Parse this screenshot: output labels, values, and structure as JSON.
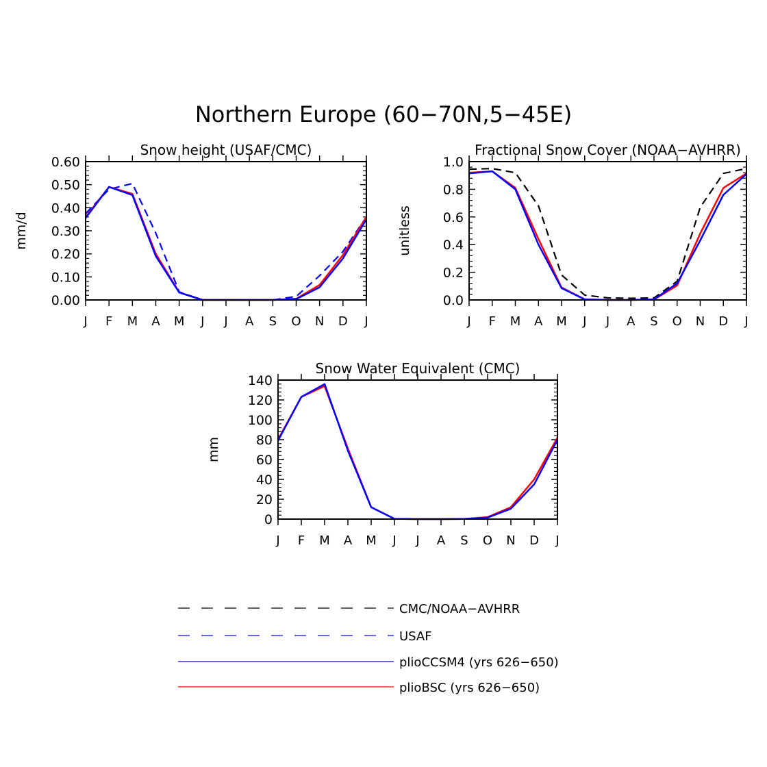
{
  "figure": {
    "title": "Northern Europe (60−70N,5−45E)"
  },
  "colors": {
    "obs_cmc": "#000000",
    "obs_usaf": "#0000ff",
    "pliocc": "#0000ff",
    "pliobsc": "#ff0000"
  },
  "legend": {
    "items": [
      {
        "label": "CMC/NOAA−AVHRR",
        "color": "#000000",
        "dash": true
      },
      {
        "label": "USAF",
        "color": "#0000ff",
        "dash": true
      },
      {
        "label": "plioCCSM4 (yrs 626−650)",
        "color": "#0000ff",
        "dash": false
      },
      {
        "label": "plioBSC (yrs 626−650)",
        "color": "#ff0000",
        "dash": false
      }
    ]
  },
  "chart_data": [
    {
      "type": "line",
      "title": "Snow height (USAF/CMC)",
      "ylabel": "mm/d",
      "xlabel": "",
      "categories": [
        "J",
        "F",
        "M",
        "A",
        "M",
        "J",
        "J",
        "A",
        "S",
        "O",
        "N",
        "D",
        "J"
      ],
      "ylim": [
        0,
        0.6
      ],
      "yticks": [
        "0.00",
        "0.10",
        "0.20",
        "0.30",
        "0.40",
        "0.50",
        "0.60"
      ],
      "series": [
        {
          "name": "CMC/NOAA−AVHRR",
          "color": "#000000",
          "dash": true,
          "width": 2,
          "values": [
            0,
            0,
            0,
            0,
            0,
            0,
            0,
            0,
            0,
            0,
            0,
            0,
            0
          ]
        },
        {
          "name": "USAF",
          "color": "#0000ff",
          "dash": true,
          "width": 2.2,
          "values": [
            0.375,
            0.48,
            0.505,
            0.29,
            0.035,
            0.0,
            0.0,
            0.0,
            0.0,
            0.015,
            0.105,
            0.21,
            0.36
          ]
        },
        {
          "name": "plioBSC (yrs 626−650)",
          "color": "#ff0000",
          "dash": false,
          "width": 2.5,
          "values": [
            0.36,
            0.49,
            0.46,
            0.2,
            0.033,
            0.0,
            0.0,
            0.0,
            0.0,
            0.005,
            0.065,
            0.195,
            0.36
          ]
        },
        {
          "name": "plioCCSM4 (yrs 626−650)",
          "color": "#0000ff",
          "dash": false,
          "width": 2.5,
          "values": [
            0.355,
            0.49,
            0.455,
            0.19,
            0.032,
            0.0,
            0.0,
            0.0,
            0.0,
            0.004,
            0.055,
            0.18,
            0.35
          ]
        }
      ]
    },
    {
      "type": "line",
      "title": "Fractional Snow Cover (NOAA−AVHRR)",
      "ylabel": "unitless",
      "xlabel": "",
      "categories": [
        "J",
        "F",
        "M",
        "A",
        "M",
        "J",
        "J",
        "A",
        "S",
        "O",
        "N",
        "D",
        "J"
      ],
      "ylim": [
        0,
        1.0
      ],
      "yticks": [
        "0.0",
        "0.2",
        "0.4",
        "0.6",
        "0.8",
        "1.0"
      ],
      "series": [
        {
          "name": "CMC/NOAA−AVHRR",
          "color": "#000000",
          "dash": true,
          "width": 2.2,
          "values": [
            0.945,
            0.95,
            0.92,
            0.68,
            0.18,
            0.035,
            0.015,
            0.012,
            0.015,
            0.135,
            0.67,
            0.915,
            0.95
          ]
        },
        {
          "name": "plioBSC (yrs 626−650)",
          "color": "#ff0000",
          "dash": false,
          "width": 2.5,
          "values": [
            0.92,
            0.93,
            0.81,
            0.44,
            0.09,
            0.005,
            0.0,
            0.0,
            0.003,
            0.105,
            0.48,
            0.81,
            0.915
          ]
        },
        {
          "name": "plioCCSM4 (yrs 626−650)",
          "color": "#0000ff",
          "dash": false,
          "width": 2.5,
          "values": [
            0.915,
            0.93,
            0.8,
            0.4,
            0.085,
            0.004,
            0.0,
            0.0,
            0.004,
            0.12,
            0.43,
            0.76,
            0.91
          ]
        }
      ]
    },
    {
      "type": "line",
      "title": "Snow Water Equivalent (CMC)",
      "ylabel": "mm",
      "xlabel": "",
      "categories": [
        "J",
        "F",
        "M",
        "A",
        "M",
        "J",
        "J",
        "A",
        "S",
        "O",
        "N",
        "D",
        "J"
      ],
      "ylim": [
        0,
        140
      ],
      "yticks": [
        "0",
        "20",
        "40",
        "60",
        "80",
        "100",
        "120",
        "140"
      ],
      "series": [
        {
          "name": "plioBSC (yrs 626−650)",
          "color": "#ff0000",
          "dash": false,
          "width": 2.5,
          "values": [
            80,
            123,
            134,
            71,
            12,
            0.3,
            0,
            0,
            0.2,
            2,
            12,
            40,
            82
          ]
        },
        {
          "name": "plioCCSM4 (yrs 626−650)",
          "color": "#0000ff",
          "dash": false,
          "width": 2.5,
          "values": [
            79,
            123,
            136,
            69,
            12,
            0.3,
            0,
            0,
            0.2,
            1.5,
            10.5,
            35,
            80
          ]
        }
      ]
    }
  ]
}
